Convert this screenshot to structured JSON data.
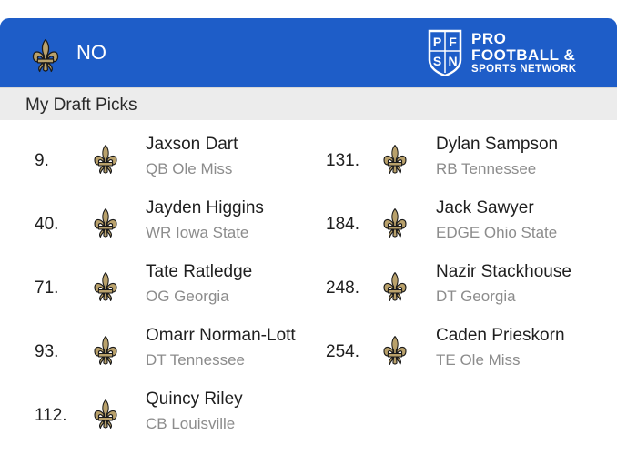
{
  "header": {
    "team": "NO",
    "team_icon": "fleur-de-lis-icon",
    "brand_badge_line1": "PF",
    "brand_badge_line2": "SN",
    "brand_line1": "PRO",
    "brand_line2": "FOOTBALL &",
    "brand_line3": "SPORTS NETWORK",
    "colors": {
      "header_bg": "#1e5dc8",
      "fleur_gold": "#b9a16b",
      "fleur_outline": "#1a1a1a"
    }
  },
  "section_title": "My Draft Picks",
  "picks_left": [
    {
      "pick": "9.",
      "name": "Jaxson Dart",
      "detail": "QB Ole Miss"
    },
    {
      "pick": "40.",
      "name": "Jayden Higgins",
      "detail": "WR Iowa State"
    },
    {
      "pick": "71.",
      "name": "Tate Ratledge",
      "detail": "OG Georgia"
    },
    {
      "pick": "93.",
      "name": "Omarr Norman-Lott",
      "detail": "DT Tennessee"
    },
    {
      "pick": "112.",
      "name": "Quincy Riley",
      "detail": "CB Louisville"
    }
  ],
  "picks_right": [
    {
      "pick": "131.",
      "name": "Dylan Sampson",
      "detail": "RB Tennessee"
    },
    {
      "pick": "184.",
      "name": "Jack Sawyer",
      "detail": "EDGE Ohio State"
    },
    {
      "pick": "248.",
      "name": "Nazir Stackhouse",
      "detail": "DT Georgia"
    },
    {
      "pick": "254.",
      "name": "Caden Prieskorn",
      "detail": "TE Ole Miss"
    }
  ]
}
